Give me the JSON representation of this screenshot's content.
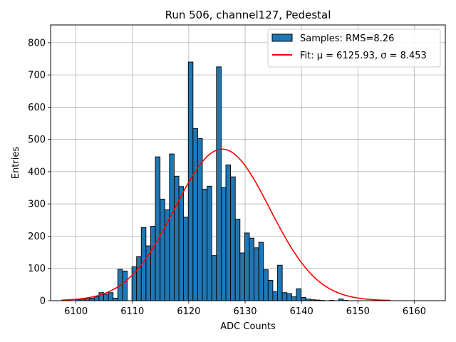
{
  "chart_data": {
    "type": "bar",
    "title": "Run 506, channel127, Pedestal",
    "xlabel": "ADC Counts",
    "ylabel": "Entries",
    "xlim": [
      6095.5,
      6165.5
    ],
    "ylim": [
      0,
      855
    ],
    "xticks": [
      "6100",
      "6110",
      "6120",
      "6130",
      "6140",
      "6150",
      "6160"
    ],
    "yticks": [
      "0",
      "100",
      "200",
      "300",
      "400",
      "500",
      "600",
      "700",
      "800"
    ],
    "grid": true,
    "legend_position": "top-right",
    "bin_width": 0.8333,
    "histogram": {
      "name": "Samples: RMS=8.26",
      "color": "#1f77b4",
      "bin_starts": [
        6097.42,
        6098.25,
        6099.08,
        6099.92,
        6100.75,
        6101.58,
        6102.42,
        6103.25,
        6104.08,
        6104.92,
        6105.75,
        6106.58,
        6107.42,
        6108.25,
        6109.08,
        6109.92,
        6110.75,
        6111.58,
        6112.42,
        6113.25,
        6114.08,
        6114.92,
        6115.75,
        6116.58,
        6117.42,
        6118.25,
        6119.08,
        6119.92,
        6120.75,
        6121.58,
        6122.42,
        6123.25,
        6124.08,
        6124.92,
        6125.75,
        6126.58,
        6127.42,
        6128.25,
        6129.08,
        6129.92,
        6130.75,
        6131.58,
        6132.42,
        6133.25,
        6134.08,
        6134.92,
        6135.75,
        6136.58,
        6137.42,
        6138.25,
        6139.08,
        6139.92,
        6140.75,
        6141.58,
        6142.42,
        6143.25,
        6144.08,
        6144.92,
        6145.75,
        6146.58,
        6147.42,
        6148.25,
        6149.08,
        6149.92,
        6150.75,
        6151.58,
        6152.42,
        6153.25,
        6154.08,
        6154.92
      ],
      "values": [
        0,
        0,
        0,
        3,
        5,
        6,
        8,
        12,
        25,
        20,
        25,
        8,
        97,
        92,
        0,
        105,
        137,
        227,
        170,
        231,
        446,
        315,
        282,
        455,
        386,
        354,
        259,
        740,
        534,
        503,
        346,
        355,
        140,
        725,
        351,
        421,
        384,
        253,
        148,
        210,
        194,
        164,
        181,
        96,
        63,
        28,
        110,
        25,
        22,
        12,
        37,
        10,
        5,
        3,
        2,
        1,
        0,
        1,
        0,
        5,
        1,
        0,
        0,
        0,
        0,
        0,
        0,
        0,
        0,
        0
      ]
    },
    "fit": {
      "name": "Fit: μ = 6125.93, σ = 8.453",
      "color": "#ff0000",
      "mu": 6125.93,
      "sigma": 8.453,
      "amplitude": 470,
      "x_range": [
        6097.42,
        6155.75
      ]
    }
  }
}
